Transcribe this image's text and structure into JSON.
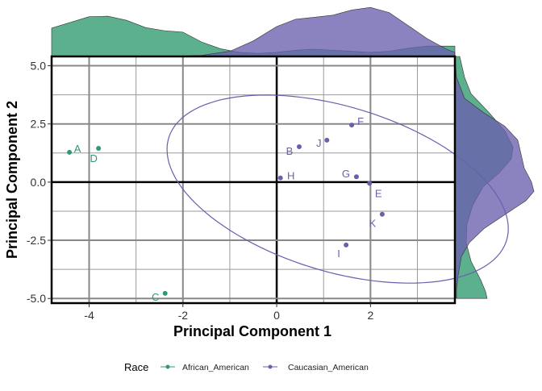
{
  "chart_data": {
    "type": "scatter",
    "title": "",
    "xlabel": "Principal Component 1",
    "ylabel": "Principal Component 2",
    "xlim": [
      -4.8,
      3.8
    ],
    "ylim": [
      -5.2,
      5.4
    ],
    "x_ticks": [
      -4,
      -2,
      0,
      2
    ],
    "x_tick_labels": [
      "-4",
      "-2",
      "0",
      "2"
    ],
    "y_ticks": [
      5.0,
      2.5,
      0.0,
      -2.5,
      -5.0
    ],
    "y_tick_labels": [
      "5.0",
      "2.5",
      "0.0",
      "-2.5",
      "-5.0"
    ],
    "grid": true,
    "legend": {
      "title": "Race",
      "position": "bottom",
      "entries": [
        "African_American",
        "Caucasian_American"
      ]
    },
    "colors": {
      "African_American": "#2e9a6e",
      "Caucasian_American": "#6a5fae"
    },
    "series": [
      {
        "name": "African_American",
        "points": [
          {
            "label": "A",
            "x": -4.42,
            "y": 1.28
          },
          {
            "label": "D",
            "x": -3.8,
            "y": 1.45
          },
          {
            "label": "C",
            "x": -2.38,
            "y": -4.78
          }
        ]
      },
      {
        "name": "Caucasian_American",
        "points": [
          {
            "label": "B",
            "x": 0.48,
            "y": 1.52
          },
          {
            "label": "J",
            "x": 1.07,
            "y": 1.8
          },
          {
            "label": "F",
            "x": 1.6,
            "y": 2.45
          },
          {
            "label": "H",
            "x": 0.08,
            "y": 0.18
          },
          {
            "label": "G",
            "x": 1.7,
            "y": 0.23
          },
          {
            "label": "E",
            "x": 1.98,
            "y": -0.05
          },
          {
            "label": "K",
            "x": 2.25,
            "y": -1.38
          },
          {
            "label": "I",
            "x": 1.48,
            "y": -2.7
          }
        ]
      }
    ],
    "ellipse": {
      "series": "Caucasian_American",
      "center": [
        1.3,
        -0.3
      ],
      "semi_axes": [
        4.6,
        2.9
      ],
      "angle_deg": -52
    },
    "marginal_density": {
      "top": [
        {
          "series": "African_American",
          "points": [
            [
              -4.8,
              0.55
            ],
            [
              -4.4,
              0.66
            ],
            [
              -4.0,
              0.77
            ],
            [
              -3.6,
              0.78
            ],
            [
              -3.2,
              0.7
            ],
            [
              -2.8,
              0.56
            ],
            [
              -2.4,
              0.5
            ],
            [
              -2.0,
              0.47
            ],
            [
              -1.6,
              0.28
            ],
            [
              -1.2,
              0.15
            ],
            [
              -0.8,
              0.08
            ],
            [
              -0.4,
              0.06
            ],
            [
              0.0,
              0.08
            ],
            [
              0.4,
              0.12
            ],
            [
              0.8,
              0.14
            ],
            [
              1.2,
              0.12
            ],
            [
              1.6,
              0.1
            ],
            [
              2.0,
              0.08
            ],
            [
              2.4,
              0.1
            ],
            [
              2.8,
              0.16
            ],
            [
              3.2,
              0.2
            ],
            [
              3.6,
              0.2
            ],
            [
              3.8,
              0.2
            ]
          ]
        },
        {
          "series": "Caucasian_American",
          "points": [
            [
              -4.8,
              0.0
            ],
            [
              -4.0,
              0.0
            ],
            [
              -3.2,
              0.0
            ],
            [
              -2.4,
              0.0
            ],
            [
              -1.6,
              0.02
            ],
            [
              -1.0,
              0.1
            ],
            [
              -0.5,
              0.3
            ],
            [
              0.0,
              0.58
            ],
            [
              0.4,
              0.72
            ],
            [
              0.8,
              0.76
            ],
            [
              1.2,
              0.8
            ],
            [
              1.6,
              0.9
            ],
            [
              2.0,
              0.95
            ],
            [
              2.4,
              0.85
            ],
            [
              2.8,
              0.6
            ],
            [
              3.2,
              0.35
            ],
            [
              3.6,
              0.15
            ],
            [
              3.8,
              0.08
            ]
          ]
        }
      ],
      "right": [
        {
          "series": "African_American",
          "points": [
            [
              5.4,
              0.06
            ],
            [
              4.5,
              0.12
            ],
            [
              3.8,
              0.2
            ],
            [
              3.0,
              0.42
            ],
            [
              2.2,
              0.62
            ],
            [
              1.5,
              0.72
            ],
            [
              1.0,
              0.7
            ],
            [
              0.4,
              0.55
            ],
            [
              -0.2,
              0.35
            ],
            [
              -1.0,
              0.22
            ],
            [
              -1.8,
              0.15
            ],
            [
              -2.6,
              0.14
            ],
            [
              -3.4,
              0.2
            ],
            [
              -4.2,
              0.32
            ],
            [
              -4.7,
              0.38
            ],
            [
              -5.0,
              0.4
            ]
          ]
        },
        {
          "series": "Caucasian_American",
          "points": [
            [
              5.4,
              0.0
            ],
            [
              4.5,
              0.02
            ],
            [
              3.6,
              0.12
            ],
            [
              3.0,
              0.35
            ],
            [
              2.4,
              0.62
            ],
            [
              1.8,
              0.78
            ],
            [
              1.2,
              0.82
            ],
            [
              0.6,
              0.86
            ],
            [
              0.0,
              0.95
            ],
            [
              -0.4,
              0.98
            ],
            [
              -0.8,
              0.88
            ],
            [
              -1.4,
              0.62
            ],
            [
              -2.0,
              0.36
            ],
            [
              -2.6,
              0.18
            ],
            [
              -3.2,
              0.08
            ],
            [
              -4.0,
              0.04
            ],
            [
              -4.6,
              0.02
            ],
            [
              -5.0,
              0.02
            ]
          ]
        }
      ]
    }
  }
}
